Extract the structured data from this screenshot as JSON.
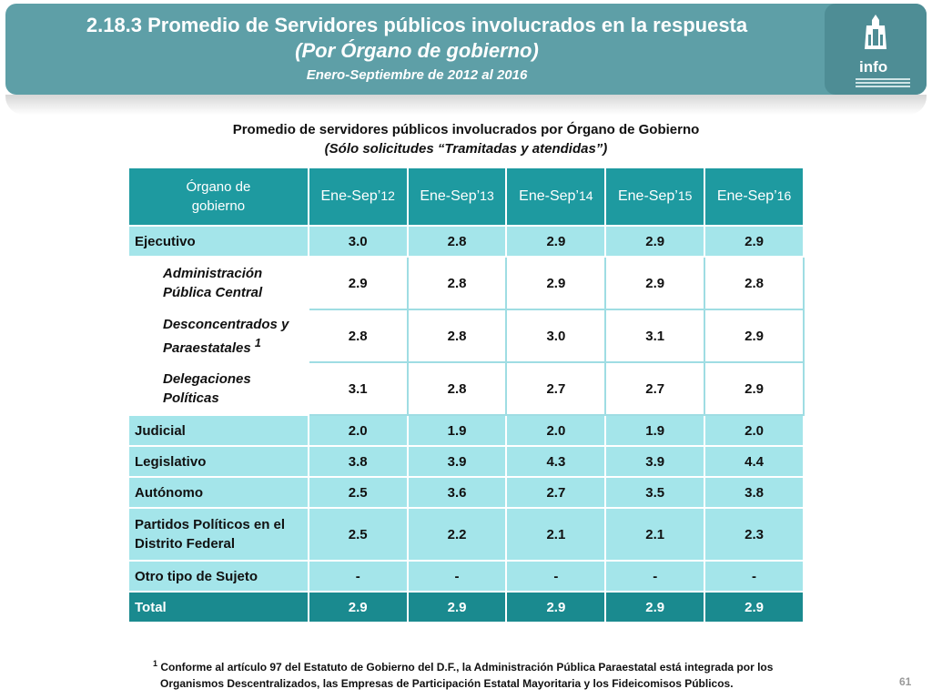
{
  "header": {
    "title": "2.18.3 Promedio de Servidores públicos involucrados en la respuesta",
    "subtitle": "(Por Órgano de gobierno)",
    "period": "Enero-Septiembre de 2012 al 2016",
    "logo_text": "info"
  },
  "table_title": "Promedio de servidores públicos involucrados por Órgano de Gobierno",
  "table_subtitle": "(Sólo solicitudes “Tramitadas y atendidas”)",
  "columns": {
    "org_line1": "Órgano de",
    "org_line2": "gobierno",
    "years": [
      {
        "prefix": "Ene-Sep’",
        "yr": "12"
      },
      {
        "prefix": "Ene-Sep’",
        "yr": "13"
      },
      {
        "prefix": "Ene-Sep’",
        "yr": "14"
      },
      {
        "prefix": "Ene-Sep’",
        "yr": "15"
      },
      {
        "prefix": "Ene-Sep’",
        "yr": "16"
      }
    ]
  },
  "rows": [
    {
      "line1": "Ejecutivo",
      "line2": "",
      "values": [
        "3.0",
        "2.8",
        "2.9",
        "2.9",
        "2.9"
      ]
    },
    {
      "line1": "Administración",
      "line2": "Pública Central",
      "values": [
        "2.9",
        "2.8",
        "2.9",
        "2.9",
        "2.8"
      ]
    },
    {
      "line1": "Desconcentrados y",
      "line2": "Paraestatales",
      "sup": "1",
      "values": [
        "2.8",
        "2.8",
        "3.0",
        "3.1",
        "2.9"
      ]
    },
    {
      "line1": "Delegaciones",
      "line2": "Políticas",
      "values": [
        "3.1",
        "2.8",
        "2.7",
        "2.7",
        "2.9"
      ]
    },
    {
      "line1": "Judicial",
      "line2": "",
      "values": [
        "2.0",
        "1.9",
        "2.0",
        "1.9",
        "2.0"
      ]
    },
    {
      "line1": "Legislativo",
      "line2": "",
      "values": [
        "3.8",
        "3.9",
        "4.3",
        "3.9",
        "4.4"
      ]
    },
    {
      "line1": "Autónomo",
      "line2": "",
      "values": [
        "2.5",
        "3.6",
        "2.7",
        "3.5",
        "3.8"
      ]
    },
    {
      "line1": "Partidos Políticos en el",
      "line2": "Distrito Federal",
      "values": [
        "2.5",
        "2.2",
        "2.1",
        "2.1",
        "2.3"
      ]
    },
    {
      "line1": "Otro tipo de Sujeto",
      "line2": "",
      "values": [
        "-",
        "-",
        "-",
        "-",
        "-"
      ]
    }
  ],
  "total": {
    "label": "Total",
    "values": [
      "2.9",
      "2.9",
      "2.9",
      "2.9",
      "2.9"
    ]
  },
  "footnote": {
    "mark": "1",
    "line1": "Conforme al artículo 97 del Estatuto de Gobierno del D.F., la Administración Pública Paraestatal está integrada por los",
    "line2": "Organismos Descentralizados, las Empresas de Participación Estatal Mayoritaria y los Fideicomisos Públicos."
  },
  "page_number": "61",
  "colors": {
    "banner": "#5e9fa7",
    "header": "#1e9aa0",
    "cell": "#a4e5ea",
    "total": "#1a8a8f"
  }
}
